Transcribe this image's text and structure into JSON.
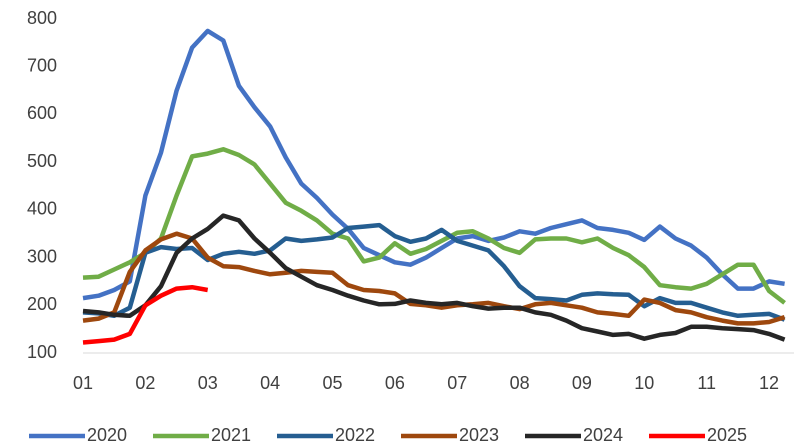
{
  "chart_data": {
    "type": "line",
    "x": [
      1,
      1.25,
      1.5,
      1.75,
      2,
      2.25,
      2.5,
      2.75,
      3,
      3.25,
      3.5,
      3.75,
      4,
      4.25,
      4.5,
      4.75,
      5,
      5.25,
      5.5,
      5.75,
      6,
      6.25,
      6.5,
      6.75,
      7,
      7.25,
      7.5,
      7.75,
      8,
      8.25,
      8.5,
      8.75,
      9,
      9.25,
      9.5,
      9.75,
      10,
      10.25,
      10.5,
      10.75,
      11,
      11.25,
      11.5,
      11.75,
      12,
      12.25
    ],
    "xlim": [
      1,
      12.4
    ],
    "xticks": [
      {
        "value": 1,
        "label": "01"
      },
      {
        "value": 2,
        "label": "02"
      },
      {
        "value": 3,
        "label": "03"
      },
      {
        "value": 4,
        "label": "04"
      },
      {
        "value": 5,
        "label": "05"
      },
      {
        "value": 6,
        "label": "06"
      },
      {
        "value": 7,
        "label": "07"
      },
      {
        "value": 8,
        "label": "08"
      },
      {
        "value": 9,
        "label": "09"
      },
      {
        "value": 10,
        "label": "10"
      },
      {
        "value": 11,
        "label": "11"
      },
      {
        "value": 12,
        "label": "12"
      }
    ],
    "ylim": [
      100,
      800
    ],
    "yticks": [
      100,
      200,
      300,
      400,
      500,
      600,
      700,
      800
    ],
    "grid": false,
    "legend": "bottom",
    "series": [
      {
        "name": "2020",
        "color": "#4472c4",
        "values": [
          215,
          220,
          232,
          250,
          430,
          520,
          650,
          740,
          775,
          755,
          660,
          615,
          575,
          510,
          455,
          425,
          390,
          360,
          320,
          305,
          290,
          285,
          300,
          320,
          340,
          345,
          335,
          342,
          355,
          350,
          362,
          370,
          378,
          362,
          358,
          352,
          337,
          365,
          340,
          325,
          300,
          265,
          235,
          235,
          250,
          245
        ]
      },
      {
        "name": "2021",
        "color": "#70ad47",
        "values": [
          258,
          260,
          275,
          290,
          310,
          340,
          430,
          512,
          518,
          527,
          515,
          495,
          455,
          415,
          398,
          378,
          350,
          340,
          292,
          300,
          330,
          308,
          318,
          335,
          352,
          355,
          340,
          320,
          310,
          338,
          340,
          340,
          332,
          340,
          320,
          305,
          280,
          242,
          238,
          235,
          245,
          265,
          285,
          285,
          230,
          205
        ]
      },
      {
        "name": "2022",
        "color": "#255e91",
        "values": [
          185,
          183,
          178,
          195,
          310,
          322,
          318,
          320,
          295,
          308,
          312,
          308,
          315,
          340,
          335,
          338,
          342,
          362,
          365,
          368,
          345,
          333,
          340,
          358,
          335,
          325,
          315,
          282,
          240,
          215,
          213,
          210,
          222,
          225,
          223,
          222,
          198,
          215,
          205,
          205,
          195,
          185,
          178,
          180,
          182,
          170
        ]
      },
      {
        "name": "2023",
        "color": "#9e480e",
        "values": [
          168,
          172,
          185,
          270,
          315,
          338,
          350,
          340,
          300,
          282,
          280,
          272,
          265,
          268,
          272,
          270,
          268,
          242,
          232,
          230,
          225,
          203,
          200,
          195,
          200,
          202,
          205,
          198,
          192,
          202,
          205,
          200,
          195,
          185,
          182,
          178,
          212,
          205,
          190,
          185,
          175,
          168,
          162,
          162,
          165,
          175
        ]
      },
      {
        "name": "2024",
        "color": "#262626",
        "values": [
          188,
          185,
          180,
          178,
          200,
          240,
          310,
          340,
          360,
          388,
          378,
          340,
          310,
          278,
          260,
          242,
          232,
          220,
          210,
          202,
          203,
          210,
          205,
          202,
          205,
          198,
          193,
          195,
          195,
          185,
          180,
          168,
          152,
          145,
          138,
          140,
          130,
          138,
          142,
          155,
          155,
          152,
          150,
          148,
          140,
          128
        ]
      },
      {
        "name": "2025",
        "color": "#ff0000",
        "values": [
          122,
          125,
          128,
          140,
          200,
          220,
          235,
          238,
          232,
          null,
          null,
          null,
          null,
          null,
          null,
          null,
          null,
          null,
          null,
          null,
          null,
          null,
          null,
          null,
          null,
          null,
          null,
          null,
          null,
          null,
          null,
          null,
          null,
          null,
          null,
          null,
          null,
          null,
          null,
          null,
          null,
          null,
          null,
          null,
          null,
          null
        ]
      }
    ]
  }
}
